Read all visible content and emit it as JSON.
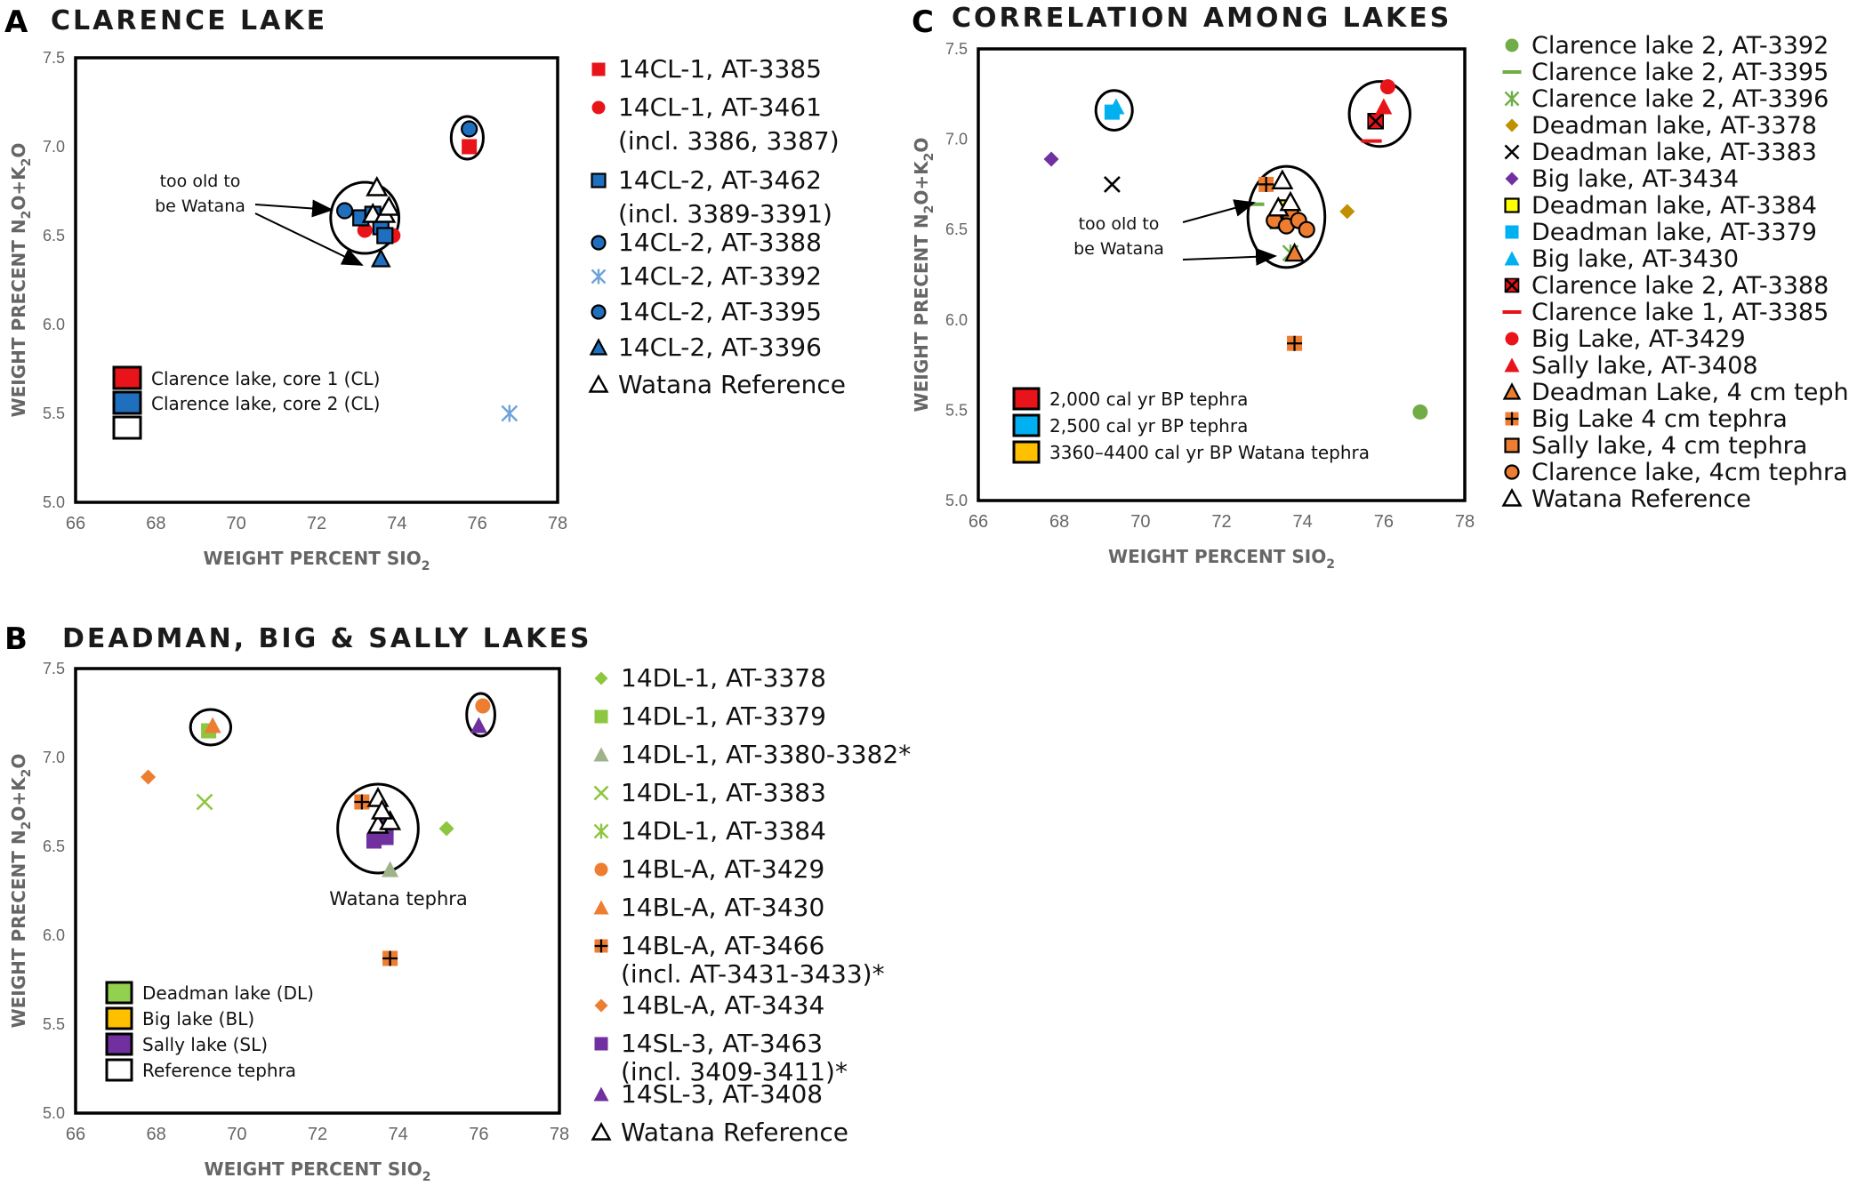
{
  "chart_data": [
    {
      "id": "A",
      "type": "scatter",
      "title": "CLARENCE LAKE",
      "panel_letter": "A",
      "xlabel": "WEIGHT PERCENT SIO",
      "xlabel_sub": "2",
      "ylabel_parts": [
        "WEIGHT PRECENT N",
        "2",
        "O+K",
        "2",
        "O"
      ],
      "xlim": [
        66,
        78
      ],
      "ylim": [
        5.0,
        7.5
      ],
      "xticks": [
        66,
        68,
        70,
        72,
        74,
        76,
        78
      ],
      "yticks": [
        5.0,
        5.5,
        6.0,
        6.5,
        7.0,
        7.5
      ],
      "x_tick_labels": [
        "66",
        "68",
        "70",
        "72",
        "74",
        "76",
        "78"
      ],
      "y_tick_labels": [
        "5.0",
        "5.5",
        "6.0",
        "6.5",
        "7.0",
        "7.5"
      ],
      "series": [
        {
          "name": "14CL-1, AT-3385",
          "lines": [
            "14CL-1, AT-3385"
          ],
          "marker": "square",
          "color": "#e8141a",
          "points": [
            [
              75.8,
              7.0
            ]
          ]
        },
        {
          "name": "14CL-1, AT-3461 (incl. 3386, 3387)",
          "lines": [
            "14CL-1, AT-3461",
            "(incl. 3386, 3387)"
          ],
          "marker": "circle",
          "color": "#e8141a",
          "points": [
            [
              73.2,
              6.53
            ],
            [
              73.9,
              6.5
            ]
          ]
        },
        {
          "name": "14CL-2, AT-3462 (incl. 3389-3391)",
          "lines": [
            "14CL-2, AT-3462",
            "(incl. 3389-3391)"
          ],
          "marker": "square-outline",
          "color": "#1f6fbf",
          "points": [
            [
              73.1,
              6.6
            ],
            [
              73.4,
              6.62
            ],
            [
              73.6,
              6.55
            ],
            [
              73.7,
              6.5
            ]
          ]
        },
        {
          "name": "14CL-2, AT-3388",
          "lines": [
            "14CL-2, AT-3388"
          ],
          "marker": "circle-outline",
          "color": "#1f6fbf",
          "points": [
            [
              75.8,
              7.1
            ]
          ]
        },
        {
          "name": "14CL-2, AT-3392",
          "lines": [
            "14CL-2, AT-3392"
          ],
          "marker": "star",
          "color": "#6fa3d8",
          "points": [
            [
              76.8,
              5.5
            ]
          ]
        },
        {
          "name": "14CL-2, AT-3395",
          "lines": [
            "14CL-2, AT-3395"
          ],
          "marker": "circle-outline",
          "color": "#1f6fbf",
          "points": [
            [
              72.7,
              6.64
            ]
          ]
        },
        {
          "name": "14CL-2, AT-3396",
          "lines": [
            "14CL-2, AT-3396"
          ],
          "marker": "triangle-outline",
          "color": "#1f6fbf",
          "points": [
            [
              73.6,
              6.37
            ]
          ]
        },
        {
          "name": "Watana Reference",
          "lines": [
            "Watana Reference"
          ],
          "marker": "triangle-open",
          "color": "#000000",
          "points": [
            [
              73.5,
              6.77
            ],
            [
              73.4,
              6.62
            ],
            [
              73.7,
              6.62
            ],
            [
              73.8,
              6.66
            ]
          ]
        }
      ],
      "ellipses": [
        {
          "cx": 73.2,
          "cy": 6.6,
          "rx": 0.85,
          "ry": 0.2
        },
        {
          "cx": 75.75,
          "cy": 7.05,
          "rx": 0.4,
          "ry": 0.12
        }
      ],
      "box_legend": [
        {
          "label": "Clarence lake, core 1 (CL)",
          "color": "#e8141a"
        },
        {
          "label": "Clarence lake, core 2 (CL)",
          "color": "#1f6fbf"
        },
        {
          "label": "",
          "color": "#ffffff"
        }
      ],
      "annotations": [
        {
          "lines": [
            "too old to",
            "be Watana"
          ]
        }
      ]
    },
    {
      "id": "B",
      "type": "scatter",
      "title": "DEADMAN, BIG & SALLY LAKES",
      "panel_letter": "B",
      "xlabel": "WEIGHT PERCENT SIO",
      "xlabel_sub": "2",
      "ylabel_parts": [
        "WEIGHT PRECENT N",
        "2",
        "O+K",
        "2",
        "O"
      ],
      "xlim": [
        66,
        78
      ],
      "ylim": [
        5.0,
        7.5
      ],
      "xticks": [
        66,
        68,
        70,
        72,
        74,
        76,
        78
      ],
      "yticks": [
        5.0,
        5.5,
        6.0,
        6.5,
        7.0,
        7.5
      ],
      "x_tick_labels": [
        "66",
        "68",
        "70",
        "72",
        "74",
        "76",
        "78"
      ],
      "y_tick_labels": [
        "5.0",
        "5.5",
        "6.0",
        "6.5",
        "7.0",
        "7.5"
      ],
      "series": [
        {
          "name": "14DL-1, AT-3378",
          "lines": [
            "14DL-1, AT-3378"
          ],
          "marker": "diamond",
          "color": "#8dc63f",
          "points": [
            [
              75.2,
              6.6
            ]
          ]
        },
        {
          "name": "14DL-1, AT-3379",
          "lines": [
            "14DL-1, AT-3379"
          ],
          "marker": "square",
          "color": "#8dc63f",
          "points": [
            [
              69.3,
              7.15
            ]
          ]
        },
        {
          "name": "14DL-1, AT-3380-3382*",
          "lines": [
            "14DL-1, AT-3380-3382*"
          ],
          "marker": "triangle",
          "color": "#9fb38a",
          "points": [
            [
              73.8,
              6.37
            ]
          ]
        },
        {
          "name": "14DL-1, AT-3383",
          "lines": [
            "14DL-1, AT-3383"
          ],
          "marker": "x",
          "color": "#8dc63f",
          "points": [
            [
              69.2,
              6.75
            ]
          ]
        },
        {
          "name": "14DL-1, AT-3384",
          "lines": [
            "14DL-1, AT-3384"
          ],
          "marker": "star",
          "color": "#8dc63f",
          "points": []
        },
        {
          "name": "14BL-A, AT-3429",
          "lines": [
            "14BL-A, AT-3429"
          ],
          "marker": "circle",
          "color": "#ed7d31",
          "points": [
            [
              76.1,
              7.29
            ]
          ]
        },
        {
          "name": "14BL-A, AT-3430",
          "lines": [
            "14BL-A, AT-3430"
          ],
          "marker": "triangle",
          "color": "#ed7d31",
          "points": [
            [
              69.4,
              7.18
            ]
          ]
        },
        {
          "name": "14BL-A, AT-3466 (incl. AT-3431-3433)*",
          "lines": [
            "14BL-A, AT-3466",
            "(incl. AT-3431-3433)*"
          ],
          "marker": "plus-square",
          "color": "#ed7d31",
          "points": [
            [
              73.1,
              6.75
            ],
            [
              73.8,
              5.87
            ],
            [
              73.7,
              6.6
            ]
          ]
        },
        {
          "name": "14BL-A, AT-3434",
          "lines": [
            "14BL-A, AT-3434"
          ],
          "marker": "diamond",
          "color": "#ed7d31",
          "points": [
            [
              67.8,
              6.89
            ]
          ]
        },
        {
          "name": "14SL-3, AT-3463 (incl. 3409-3411)*",
          "lines": [
            "14SL-3, AT-3463",
            "(incl. 3409-3411)*"
          ],
          "marker": "square",
          "color": "#7030a0",
          "points": [
            [
              73.4,
              6.53
            ],
            [
              73.7,
              6.55
            ],
            [
              73.6,
              6.62
            ]
          ]
        },
        {
          "name": "14SL-3, AT-3408",
          "lines": [
            "14SL-3, AT-3408"
          ],
          "marker": "triangle",
          "color": "#7030a0",
          "points": [
            [
              76.0,
              7.18
            ]
          ]
        },
        {
          "name": "Watana Reference",
          "lines": [
            "Watana Reference"
          ],
          "marker": "triangle-open",
          "color": "#000000",
          "points": [
            [
              73.5,
              6.77
            ],
            [
              73.5,
              6.62
            ],
            [
              73.8,
              6.64
            ],
            [
              73.6,
              6.7
            ]
          ]
        }
      ],
      "ellipses": [
        {
          "cx": 73.5,
          "cy": 6.6,
          "rx": 1.0,
          "ry": 0.25
        },
        {
          "cx": 69.35,
          "cy": 7.17,
          "rx": 0.5,
          "ry": 0.1
        },
        {
          "cx": 76.05,
          "cy": 7.24,
          "rx": 0.35,
          "ry": 0.12
        }
      ],
      "box_legend": [
        {
          "label": "Deadman lake (DL)",
          "color": "#92d050"
        },
        {
          "label": "Big lake (BL)",
          "color": "#ffc000"
        },
        {
          "label": "Sally lake (SL)",
          "color": "#7030a0"
        },
        {
          "label": "Reference tephra",
          "color": "#ffffff"
        }
      ],
      "annotations": [
        {
          "lines": [
            "Watana tephra"
          ]
        }
      ]
    },
    {
      "id": "C",
      "type": "scatter",
      "title": "CORRELATION AMONG LAKES",
      "panel_letter": "C",
      "xlabel": "WEIGHT PERCENT SIO",
      "xlabel_sub": "2",
      "ylabel_parts": [
        "WEIGHT PRECENT N",
        "2",
        "O+K",
        "2",
        "O"
      ],
      "xlim": [
        66,
        78
      ],
      "ylim": [
        5.0,
        7.5
      ],
      "xticks": [
        66,
        68,
        70,
        72,
        74,
        76,
        78
      ],
      "yticks": [
        5.0,
        5.5,
        6.0,
        6.5,
        7.0,
        7.5
      ],
      "x_tick_labels": [
        "66",
        "68",
        "70",
        "72",
        "74",
        "76",
        "78"
      ],
      "y_tick_labels": [
        "5.0",
        "5.5",
        "6.0",
        "6.5",
        "7.0",
        "7.5"
      ],
      "series": [
        {
          "name": "Clarence lake 2, AT-3392",
          "lines": [
            "Clarence lake 2, AT-3392"
          ],
          "marker": "circle",
          "color": "#70ad47",
          "points": [
            [
              76.9,
              5.49
            ]
          ]
        },
        {
          "name": "Clarence lake 2, AT-3395",
          "lines": [
            "Clarence lake 2, AT-3395"
          ],
          "marker": "dash",
          "color": "#70ad47",
          "points": [
            [
              72.8,
              6.64
            ]
          ]
        },
        {
          "name": "Clarence lake 2, AT-3396",
          "lines": [
            "Clarence lake 2, AT-3396"
          ],
          "marker": "star",
          "color": "#70ad47",
          "points": [
            [
              73.7,
              6.37
            ]
          ]
        },
        {
          "name": "Deadman lake, AT-3378",
          "lines": [
            "Deadman lake, AT-3378"
          ],
          "marker": "diamond",
          "color": "#bf9000",
          "points": [
            [
              75.1,
              6.6
            ]
          ]
        },
        {
          "name": "Deadman lake, AT-3383",
          "lines": [
            "Deadman lake, AT-3383"
          ],
          "marker": "x",
          "color": "#000000",
          "points": [
            [
              69.3,
              6.75
            ]
          ]
        },
        {
          "name": "Big lake, AT-3434",
          "lines": [
            "Big lake, AT-3434"
          ],
          "marker": "diamond",
          "color": "#7030a0",
          "points": [
            [
              67.8,
              6.89
            ]
          ]
        },
        {
          "name": "Deadman lake, AT-3384",
          "lines": [
            "Deadman lake, AT-3384"
          ],
          "marker": "square-outline",
          "color": "#ffff00",
          "points": [
            [
              73.6,
              6.62
            ]
          ]
        },
        {
          "name": "Deadman lake, AT-3379",
          "lines": [
            "Deadman lake, AT-3379"
          ],
          "marker": "square",
          "color": "#00b0f0",
          "points": [
            [
              69.3,
              7.15
            ]
          ]
        },
        {
          "name": "Big lake, AT-3430",
          "lines": [
            "Big lake, AT-3430"
          ],
          "marker": "triangle",
          "color": "#00b0f0",
          "points": [
            [
              69.4,
              7.18
            ]
          ]
        },
        {
          "name": "Clarence lake 2, AT-3388",
          "lines": [
            "Clarence lake 2, AT-3388"
          ],
          "marker": "x-square",
          "color": "#e8141a",
          "points": [
            [
              75.8,
              7.1
            ]
          ]
        },
        {
          "name": "Clarence lake 1, AT-3385",
          "lines": [
            "Clarence lake 1, AT-3385"
          ],
          "marker": "dash",
          "color": "#e8141a",
          "points": [
            [
              75.7,
              6.99
            ]
          ]
        },
        {
          "name": "Big Lake, AT-3429",
          "lines": [
            "Big Lake, AT-3429"
          ],
          "marker": "circle",
          "color": "#e8141a",
          "points": [
            [
              76.1,
              7.29
            ]
          ]
        },
        {
          "name": "Sally lake, AT-3408",
          "lines": [
            "Sally lake, AT-3408"
          ],
          "marker": "triangle",
          "color": "#e8141a",
          "points": [
            [
              76.0,
              7.18
            ]
          ]
        },
        {
          "name": "Deadman Lake, 4 cm tephra",
          "lines": [
            "Deadman Lake, 4 cm tephra"
          ],
          "marker": "triangle-outline",
          "color": "#ed7d31",
          "points": [
            [
              73.8,
              6.37
            ]
          ]
        },
        {
          "name": "Big Lake 4 cm tephra",
          "lines": [
            "Big Lake 4 cm tephra"
          ],
          "marker": "plus-square",
          "color": "#ed7d31",
          "points": [
            [
              73.1,
              6.75
            ],
            [
              73.8,
              5.87
            ]
          ]
        },
        {
          "name": "Sally lake, 4 cm tephra",
          "lines": [
            "Sally lake, 4 cm tephra"
          ],
          "marker": "square-outline",
          "color": "#ed7d31",
          "points": [
            [
              73.4,
              6.55
            ],
            [
              73.7,
              6.58
            ]
          ]
        },
        {
          "name": "Clarence lake, 4cm tephra",
          "lines": [
            "Clarence lake, 4cm tephra"
          ],
          "marker": "circle-outline",
          "color": "#ed7d31",
          "points": [
            [
              73.3,
              6.55
            ],
            [
              73.6,
              6.52
            ],
            [
              73.9,
              6.55
            ],
            [
              74.1,
              6.5
            ]
          ]
        },
        {
          "name": "Watana Reference",
          "lines": [
            "Watana Reference"
          ],
          "marker": "triangle-open",
          "color": "#000000",
          "points": [
            [
              73.5,
              6.77
            ],
            [
              73.4,
              6.62
            ],
            [
              73.7,
              6.65
            ]
          ]
        }
      ],
      "ellipses": [
        {
          "cx": 73.6,
          "cy": 6.57,
          "rx": 0.95,
          "ry": 0.28
        },
        {
          "cx": 69.35,
          "cy": 7.16,
          "rx": 0.45,
          "ry": 0.11
        },
        {
          "cx": 75.9,
          "cy": 7.14,
          "rx": 0.75,
          "ry": 0.18
        }
      ],
      "box_legend": [
        {
          "label": "2,000 cal yr BP tephra",
          "color": "#e8141a"
        },
        {
          "label": "2,500 cal yr BP tephra",
          "color": "#00b0f0"
        },
        {
          "label": "3360–4400 cal yr BP Watana tephra",
          "color": "#ffc000"
        }
      ],
      "annotations": [
        {
          "lines": [
            "too old to",
            "be Watana"
          ]
        }
      ]
    }
  ]
}
